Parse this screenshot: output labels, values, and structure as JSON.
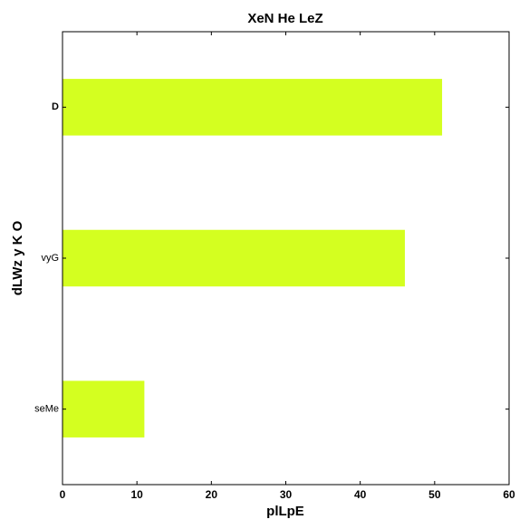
{
  "chart_data": {
    "type": "bar",
    "orientation": "horizontal",
    "title": "XeN He LeZ",
    "xlabel": "plLpE",
    "ylabel": "dLWz y K O",
    "categories": [
      "seMe",
      "vyG",
      "D"
    ],
    "values": [
      11,
      46,
      51
    ],
    "xlim": [
      0,
      60
    ],
    "xticks": [
      0,
      10,
      20,
      30,
      40,
      50,
      60
    ],
    "grid": false,
    "legend": "none",
    "bar_color": "#d4ff20"
  }
}
